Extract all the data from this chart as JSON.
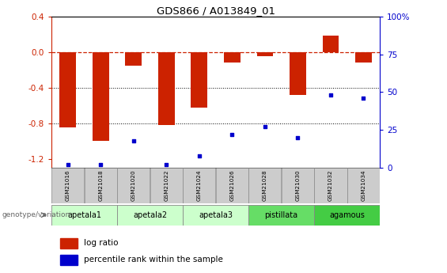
{
  "title": "GDS866 / A013849_01",
  "samples": [
    "GSM21016",
    "GSM21018",
    "GSM21020",
    "GSM21022",
    "GSM21024",
    "GSM21026",
    "GSM21028",
    "GSM21030",
    "GSM21032",
    "GSM21034"
  ],
  "log_ratio": [
    -0.85,
    -1.0,
    -0.15,
    -0.82,
    -0.62,
    -0.12,
    -0.05,
    -0.48,
    0.18,
    -0.12
  ],
  "percentile_rank": [
    2,
    2,
    18,
    2,
    8,
    22,
    27,
    20,
    48,
    46
  ],
  "groups": [
    {
      "name": "apetala1",
      "indices": [
        0,
        1
      ],
      "color": "#ccffcc"
    },
    {
      "name": "apetala2",
      "indices": [
        2,
        3
      ],
      "color": "#ccffcc"
    },
    {
      "name": "apetala3",
      "indices": [
        4,
        5
      ],
      "color": "#ccffcc"
    },
    {
      "name": "pistillata",
      "indices": [
        6,
        7
      ],
      "color": "#66dd66"
    },
    {
      "name": "agamous",
      "indices": [
        8,
        9
      ],
      "color": "#44cc44"
    }
  ],
  "ylim_left": [
    -1.3,
    0.4
  ],
  "ylim_right": [
    0,
    100
  ],
  "yticks_left": [
    -1.2,
    -0.8,
    -0.4,
    0.0,
    0.4
  ],
  "yticks_right": [
    0,
    25,
    50,
    75,
    100
  ],
  "bar_color": "#cc2200",
  "dot_color": "#0000cc",
  "hline_color": "#cc2200",
  "grid_color": "#333333",
  "background_color": "#ffffff",
  "legend_label_bar": "log ratio",
  "legend_label_dot": "percentile rank within the sample",
  "genotype_label": "genotype/variation",
  "bar_width": 0.5
}
